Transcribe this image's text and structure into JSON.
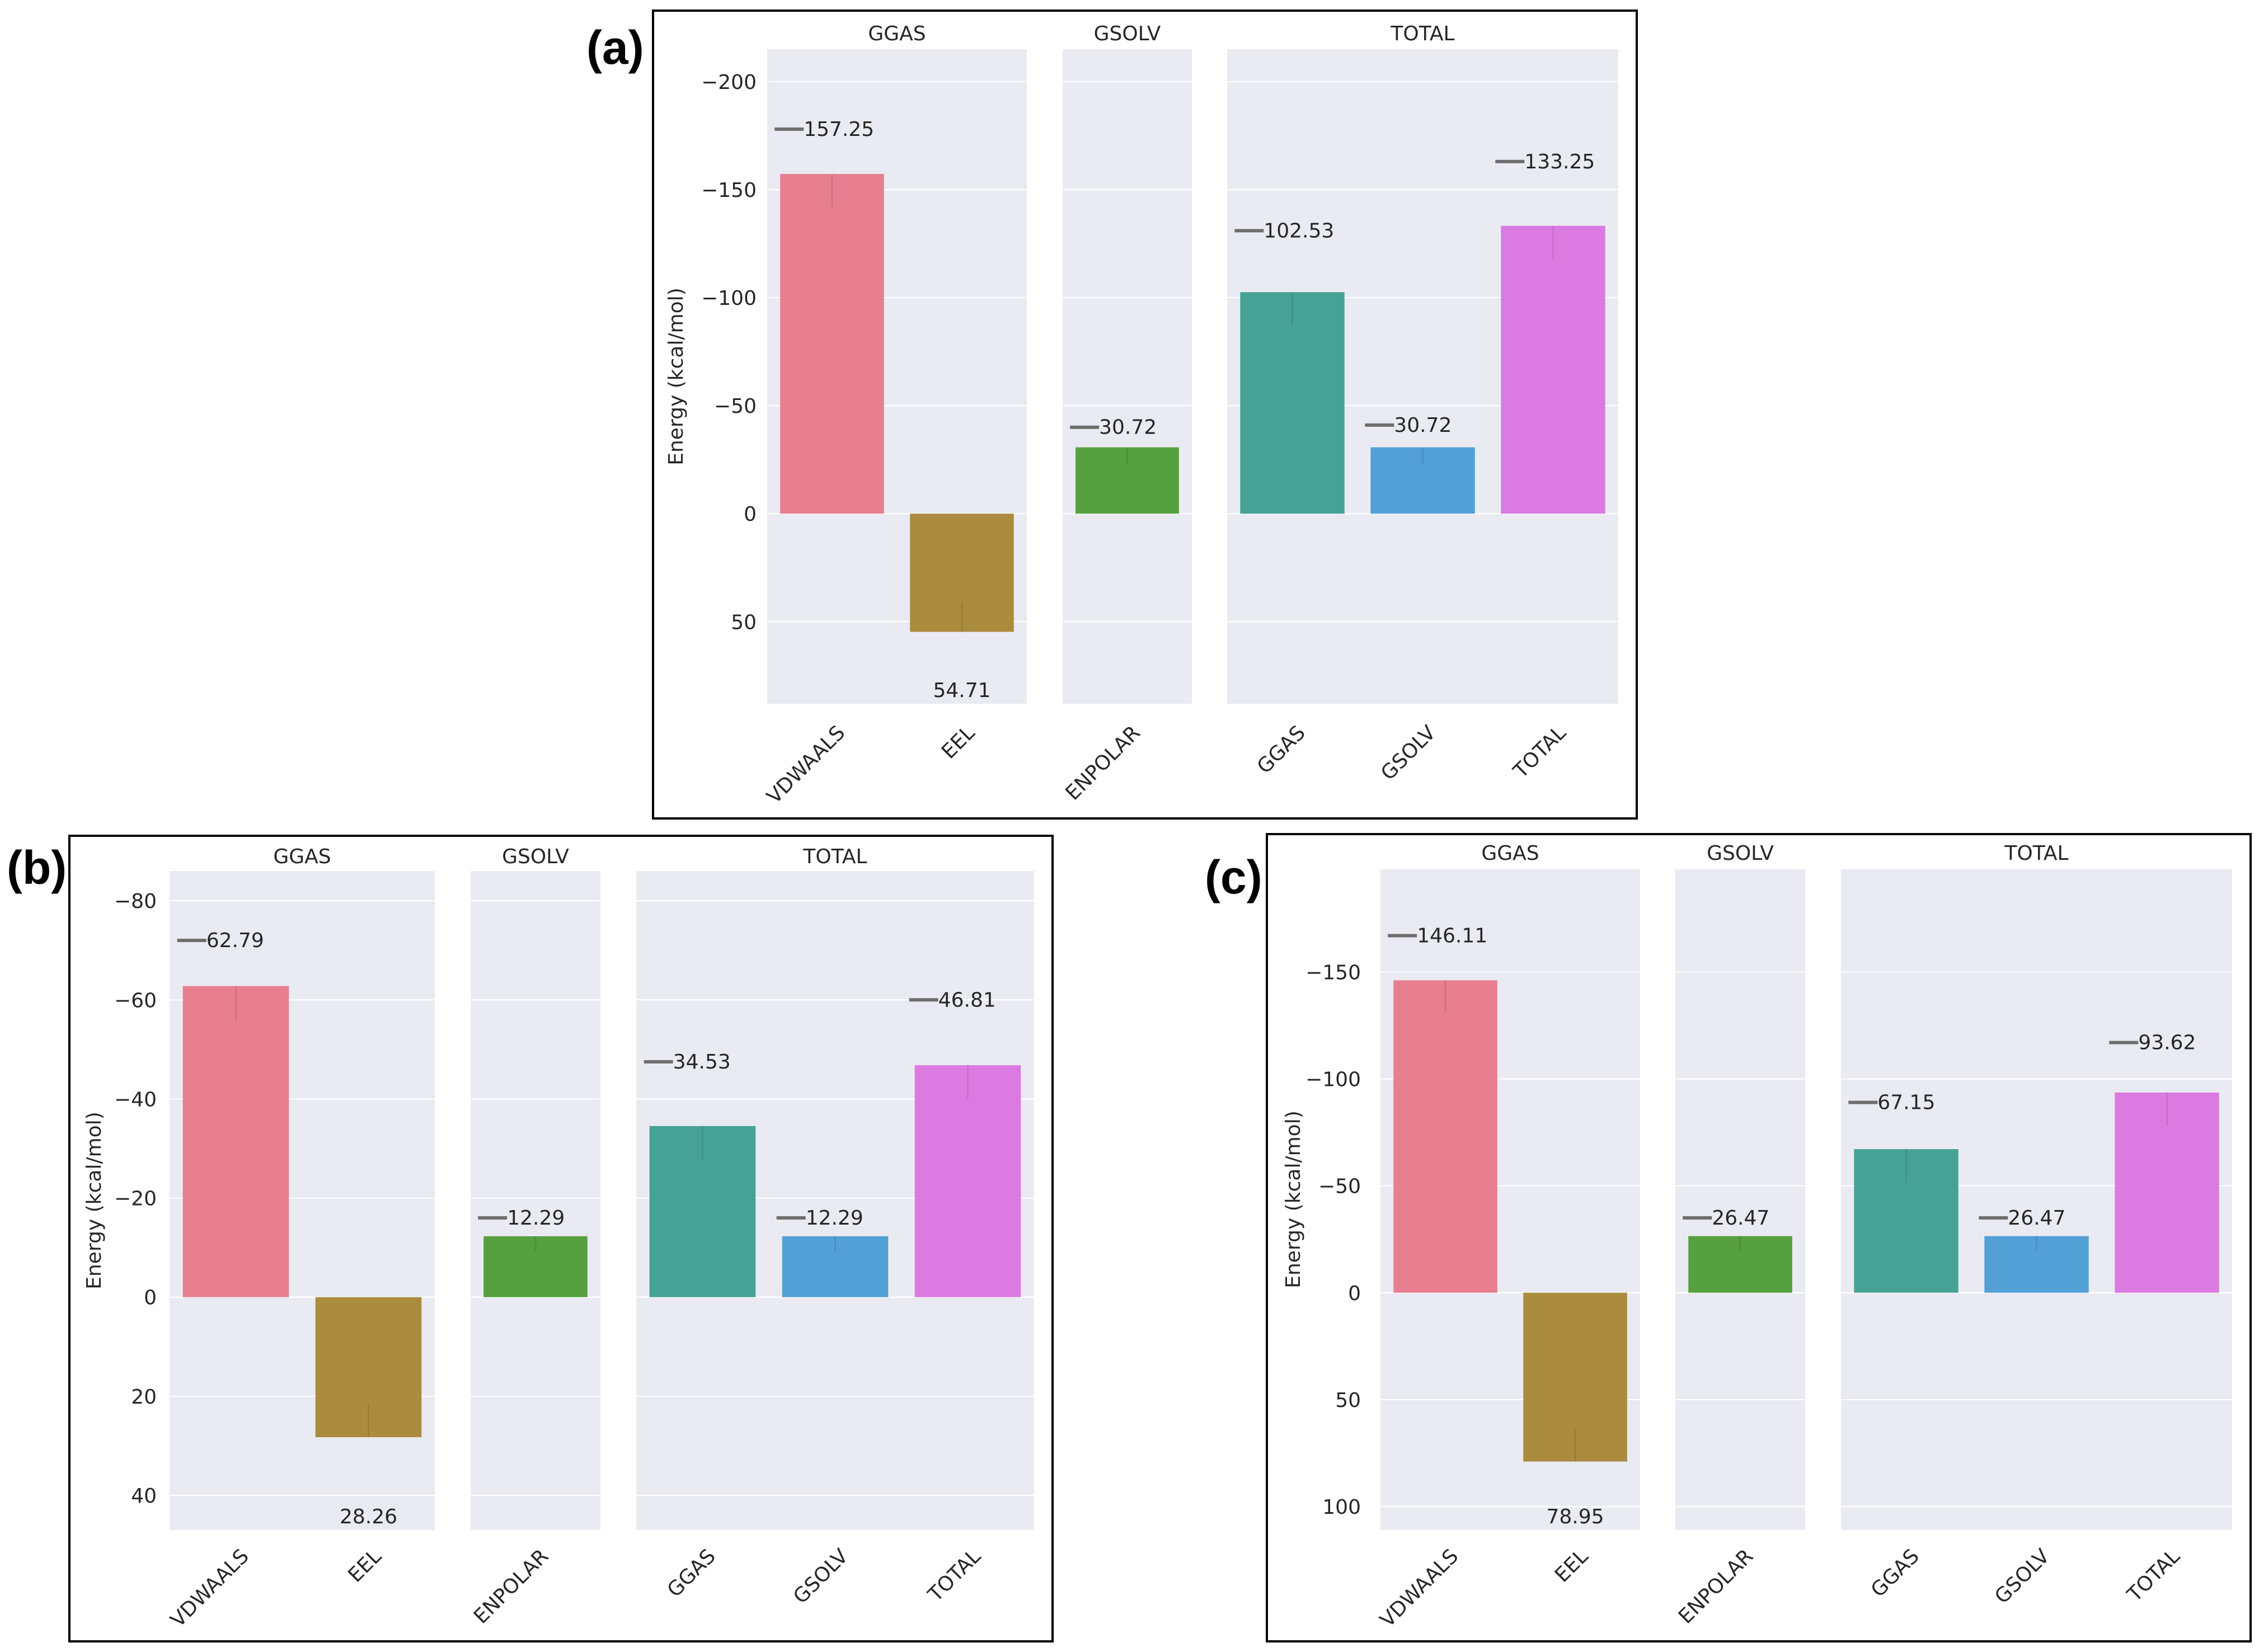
{
  "chart_data": [
    {
      "panel_label": "(a)",
      "type": "bar",
      "ylabel": "Energy (kcal/mol)",
      "ylim": [
        88,
        -215
      ],
      "y_ticks": [
        50,
        0,
        -50,
        -100,
        -150,
        -200
      ],
      "y_tick_labels": [
        "50",
        "0",
        "−50",
        "−100",
        "−150",
        "−200"
      ],
      "facets": [
        {
          "title": "GGAS",
          "bars": [
            {
              "category": "VDWAALS",
              "value": -157.25,
              "label": "157.25",
              "color": "#e77f91",
              "marker": -178
            },
            {
              "category": "EEL",
              "value": 54.71,
              "label": "54.71",
              "color": "#ab8c3f",
              "marker": null
            }
          ]
        },
        {
          "title": "GSOLV",
          "bars": [
            {
              "category": "ENPOLAR",
              "value": -30.72,
              "label": "30.72",
              "color": "#56a03f",
              "marker": -40
            }
          ]
        },
        {
          "title": "TOTAL",
          "bars": [
            {
              "category": "GGAS",
              "value": -102.53,
              "label": "102.53",
              "color": "#46a295",
              "marker": -131
            },
            {
              "category": "GSOLV",
              "value": -30.72,
              "label": "30.72",
              "color": "#53a0d6",
              "marker": -41
            },
            {
              "category": "TOTAL",
              "value": -133.25,
              "label": "133.25",
              "color": "#db7be2",
              "marker": -163
            }
          ]
        }
      ]
    },
    {
      "panel_label": "(b)",
      "type": "bar",
      "ylabel": "Energy (kcal/mol)",
      "ylim": [
        47,
        -86
      ],
      "y_ticks": [
        40,
        20,
        0,
        -20,
        -40,
        -60,
        -80
      ],
      "y_tick_labels": [
        "40",
        "20",
        "0",
        "−20",
        "−40",
        "−60",
        "−80"
      ],
      "facets": [
        {
          "title": "GGAS",
          "bars": [
            {
              "category": "VDWAALS",
              "value": -62.79,
              "label": "62.79",
              "color": "#e77f91",
              "marker": -72
            },
            {
              "category": "EEL",
              "value": 28.26,
              "label": "28.26",
              "color": "#ab8c3f",
              "marker": null
            }
          ]
        },
        {
          "title": "GSOLV",
          "bars": [
            {
              "category": "ENPOLAR",
              "value": -12.29,
              "label": "12.29",
              "color": "#56a03f",
              "marker": -16
            }
          ]
        },
        {
          "title": "TOTAL",
          "bars": [
            {
              "category": "GGAS",
              "value": -34.53,
              "label": "34.53",
              "color": "#46a295",
              "marker": -47.5
            },
            {
              "category": "GSOLV",
              "value": -12.29,
              "label": "12.29",
              "color": "#53a0d6",
              "marker": -16
            },
            {
              "category": "TOTAL",
              "value": -46.81,
              "label": "46.81",
              "color": "#db7be2",
              "marker": -60
            }
          ]
        }
      ]
    },
    {
      "panel_label": "(c)",
      "type": "bar",
      "ylabel": "Energy (kcal/mol)",
      "ylim": [
        111,
        -198
      ],
      "y_ticks": [
        100,
        50,
        0,
        -50,
        -100,
        -150
      ],
      "y_tick_labels": [
        "100",
        "50",
        "0",
        "−50",
        "−100",
        "−150"
      ],
      "facets": [
        {
          "title": "GGAS",
          "bars": [
            {
              "category": "VDWAALS",
              "value": -146.11,
              "label": "146.11",
              "color": "#e77f91",
              "marker": -167
            },
            {
              "category": "EEL",
              "value": 78.95,
              "label": "78.95",
              "color": "#ab8c3f",
              "marker": null
            }
          ]
        },
        {
          "title": "GSOLV",
          "bars": [
            {
              "category": "ENPOLAR",
              "value": -26.47,
              "label": "26.47",
              "color": "#56a03f",
              "marker": -35
            }
          ]
        },
        {
          "title": "TOTAL",
          "bars": [
            {
              "category": "GGAS",
              "value": -67.15,
              "label": "67.15",
              "color": "#46a295",
              "marker": -89
            },
            {
              "category": "GSOLV",
              "value": -26.47,
              "label": "26.47",
              "color": "#53a0d6",
              "marker": -35
            },
            {
              "category": "TOTAL",
              "value": -93.62,
              "label": "93.62",
              "color": "#db7be2",
              "marker": -117
            }
          ]
        }
      ]
    }
  ],
  "style": {
    "facet_background": "#eaeaf2",
    "grid_color": "#ffffff",
    "marker_color": "#6e6e6e",
    "text_color": "#262626"
  }
}
